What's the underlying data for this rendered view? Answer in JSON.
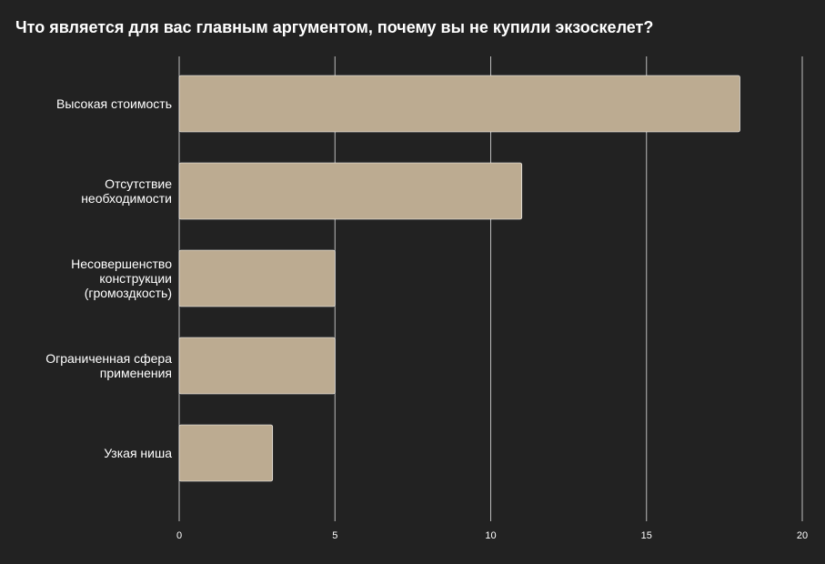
{
  "chart_data": {
    "type": "bar",
    "orientation": "horizontal",
    "title": "Что является для вас главным аргументом, почему вы не купили экзоскелет?",
    "categories": [
      "Высокая стоимость",
      "Отсутствие необходимости",
      "Несовершенство конструкции (громоздкость)",
      "Ограниченная сфера применения",
      "Узкая ниша"
    ],
    "category_lines": [
      [
        "Высокая стоимость"
      ],
      [
        "Отсутствие",
        "необходимости"
      ],
      [
        "Несовершенство",
        "конструкции",
        "(громоздкость)"
      ],
      [
        "Ограниченная сфера",
        "применения"
      ],
      [
        "Узкая ниша"
      ]
    ],
    "values": [
      18,
      11,
      5,
      5,
      3
    ],
    "xlim": [
      0,
      20
    ],
    "xticks": [
      "0",
      "5",
      "10",
      "15",
      "20"
    ],
    "xlabel": "",
    "ylabel": "",
    "grid": true,
    "legend": "none",
    "colors": {
      "background": "#222222",
      "bar": "#bcab91",
      "bar_border": "#ffffff",
      "grid": "#bdbdbd",
      "text": "#ffffff"
    }
  }
}
